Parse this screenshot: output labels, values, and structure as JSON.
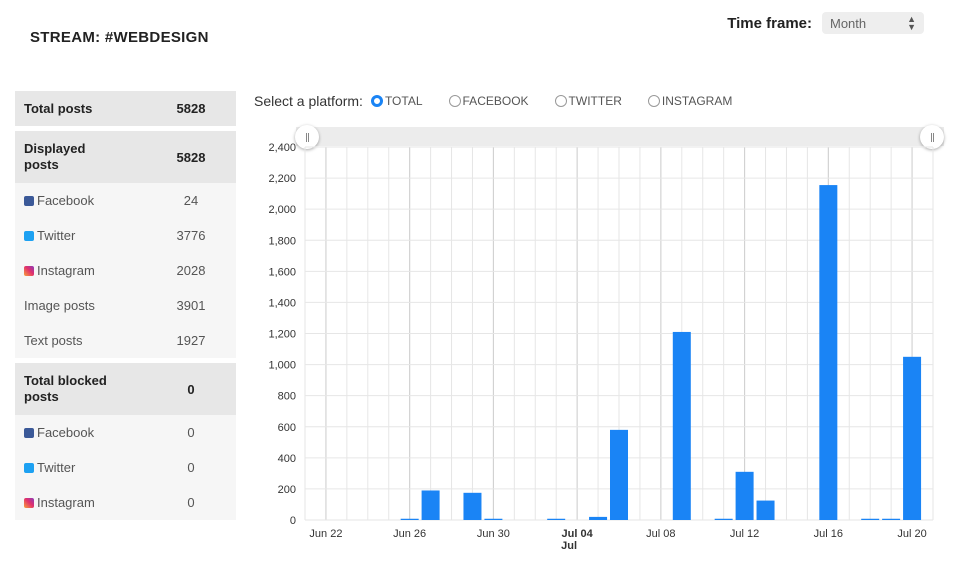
{
  "header": {
    "stream_title": "STREAM: #WEBDESIGN",
    "timeframe_label": "Time frame:",
    "timeframe_value": "Month"
  },
  "stats": {
    "total_posts": {
      "label": "Total posts",
      "value": "5828"
    },
    "displayed_posts": {
      "label": "Displayed posts",
      "value": "5828"
    },
    "displayed": [
      {
        "icon": "facebook-icon",
        "label": "Facebook",
        "value": "24"
      },
      {
        "icon": "twitter-icon",
        "label": "Twitter",
        "value": "3776"
      },
      {
        "icon": "instagram-icon",
        "label": "Instagram",
        "value": "2028"
      },
      {
        "icon": "",
        "label": "Image posts",
        "value": "3901"
      },
      {
        "icon": "",
        "label": "Text posts",
        "value": "1927"
      }
    ],
    "blocked_posts": {
      "label": "Total blocked posts",
      "value": "0"
    },
    "blocked": [
      {
        "icon": "facebook-icon",
        "label": "Facebook",
        "value": "0"
      },
      {
        "icon": "twitter-icon",
        "label": "Twitter",
        "value": "0"
      },
      {
        "icon": "instagram-icon",
        "label": "Instagram",
        "value": "0"
      }
    ]
  },
  "platform": {
    "label": "Select a platform:",
    "options": [
      "TOTAL",
      "FACEBOOK",
      "TWITTER",
      "INSTAGRAM"
    ],
    "selected": "TOTAL"
  },
  "colors": {
    "bar": "#1a84f5",
    "accent": "#1a84f5"
  },
  "chart_data": {
    "type": "bar",
    "ylim": [
      0,
      2400
    ],
    "yticks": [
      0,
      200,
      400,
      600,
      800,
      1000,
      1200,
      1400,
      1600,
      1800,
      2000,
      2200,
      2400
    ],
    "ytick_labels": [
      "0",
      "200",
      "400",
      "600",
      "800",
      "1,000",
      "1,200",
      "1,400",
      "1,600",
      "1,800",
      "2,000",
      "2,200",
      "2,400"
    ],
    "xlim": [
      "2018-06-21",
      "2018-07-20"
    ],
    "xticks": [
      {
        "date": "2018-06-22",
        "label": "Jun 22"
      },
      {
        "date": "2018-06-26",
        "label": "Jun 26"
      },
      {
        "date": "2018-06-30",
        "label": "Jun 30"
      },
      {
        "date": "2018-07-04",
        "label": "Jul 04",
        "sublabel": "Jul",
        "bold": true
      },
      {
        "date": "2018-07-08",
        "label": "Jul 08"
      },
      {
        "date": "2018-07-12",
        "label": "Jul 12"
      },
      {
        "date": "2018-07-16",
        "label": "Jul 16"
      },
      {
        "date": "2018-07-20",
        "label": "Jul 20"
      }
    ],
    "points": [
      {
        "date": "2018-06-26",
        "value": 8
      },
      {
        "date": "2018-06-27",
        "value": 190
      },
      {
        "date": "2018-06-29",
        "value": 175
      },
      {
        "date": "2018-06-30",
        "value": 8
      },
      {
        "date": "2018-07-03",
        "value": 8
      },
      {
        "date": "2018-07-05",
        "value": 20
      },
      {
        "date": "2018-07-06",
        "value": 580
      },
      {
        "date": "2018-07-09",
        "value": 1210
      },
      {
        "date": "2018-07-11",
        "value": 8
      },
      {
        "date": "2018-07-12",
        "value": 310
      },
      {
        "date": "2018-07-13",
        "value": 125
      },
      {
        "date": "2018-07-16",
        "value": 2155
      },
      {
        "date": "2018-07-18",
        "value": 8
      },
      {
        "date": "2018-07-19",
        "value": 8
      },
      {
        "date": "2018-07-20",
        "value": 1050
      }
    ]
  }
}
